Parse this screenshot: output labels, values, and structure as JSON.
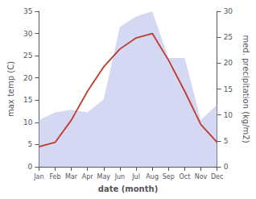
{
  "chart_data": {
    "type": "line",
    "categories": [
      "Jan",
      "Feb",
      "Mar",
      "Apr",
      "May",
      "Jun",
      "Jul",
      "Aug",
      "Sep",
      "Oct",
      "Nov",
      "Dec"
    ],
    "xlabel": "date (month)",
    "ylabel": "max temp (C)",
    "y2label": "med. precipitation (kg/m2)",
    "series": [
      {
        "type": "area",
        "axis": "y2",
        "color": "#b0b8e8",
        "values": [
          9.0,
          10.5,
          11.0,
          10.5,
          13.0,
          27.0,
          29.0,
          30.0,
          21.0,
          21.0,
          9.0,
          12.0
        ]
      },
      {
        "type": "line",
        "color": "#c0392b",
        "values": [
          4.5,
          5.5,
          10.5,
          17.0,
          22.5,
          26.5,
          29.0,
          30.0,
          24.0,
          17.0,
          9.5,
          5.5
        ]
      }
    ],
    "ylim": [
      0,
      35
    ],
    "yticks": [
      0,
      5,
      10,
      15,
      20,
      25,
      30,
      35
    ],
    "y2lim": [
      0,
      30
    ],
    "y2ticks": [
      0,
      5,
      10,
      15,
      20,
      25,
      30
    ],
    "grid": false
  }
}
